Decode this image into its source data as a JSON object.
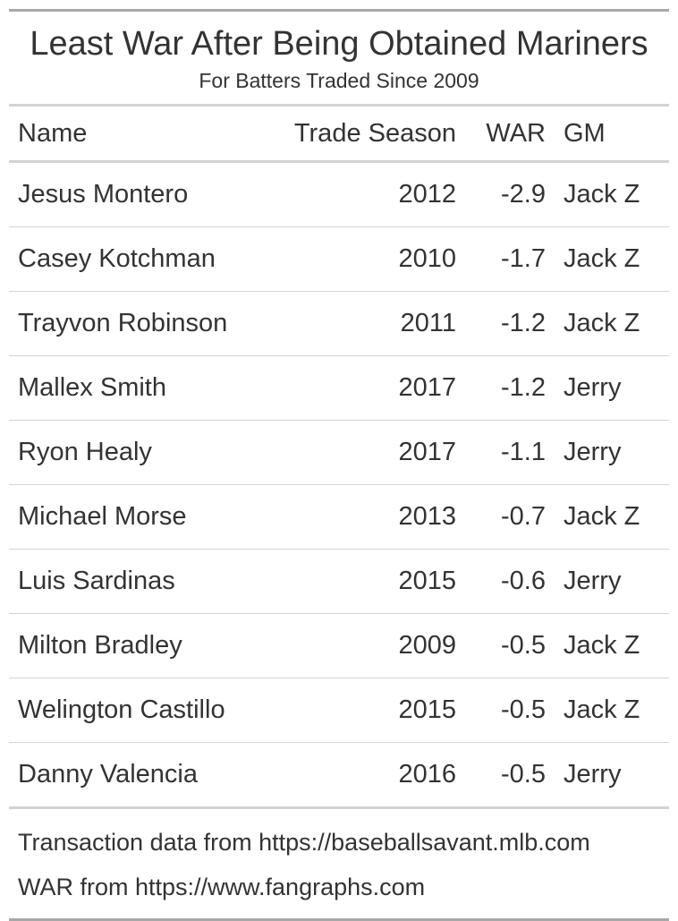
{
  "chart_data": {
    "type": "table",
    "title": "Least War After Being Obtained Mariners",
    "subtitle": "For Batters Traded Since 2009",
    "columns": [
      "Name",
      "Trade Season",
      "WAR",
      "GM"
    ],
    "rows": [
      {
        "name": "Jesus Montero",
        "season": "2012",
        "war": "-2.9",
        "gm": "Jack Z"
      },
      {
        "name": "Casey Kotchman",
        "season": "2010",
        "war": "-1.7",
        "gm": "Jack Z"
      },
      {
        "name": "Trayvon Robinson",
        "season": "2011",
        "war": "-1.2",
        "gm": "Jack Z"
      },
      {
        "name": "Mallex Smith",
        "season": "2017",
        "war": "-1.2",
        "gm": "Jerry"
      },
      {
        "name": "Ryon Healy",
        "season": "2017",
        "war": "-1.1",
        "gm": "Jerry"
      },
      {
        "name": "Michael Morse",
        "season": "2013",
        "war": "-0.7",
        "gm": "Jack Z"
      },
      {
        "name": "Luis Sardinas",
        "season": "2015",
        "war": "-0.6",
        "gm": "Jerry"
      },
      {
        "name": "Milton Bradley",
        "season": "2009",
        "war": "-0.5",
        "gm": "Jack Z"
      },
      {
        "name": "Welington Castillo",
        "season": "2015",
        "war": "-0.5",
        "gm": "Jack Z"
      },
      {
        "name": "Danny Valencia",
        "season": "2016",
        "war": "-0.5",
        "gm": "Jerry"
      }
    ],
    "source_notes": [
      "Transaction data from https://baseballsavant.mlb.com",
      "WAR from https://www.fangraphs.com"
    ]
  }
}
